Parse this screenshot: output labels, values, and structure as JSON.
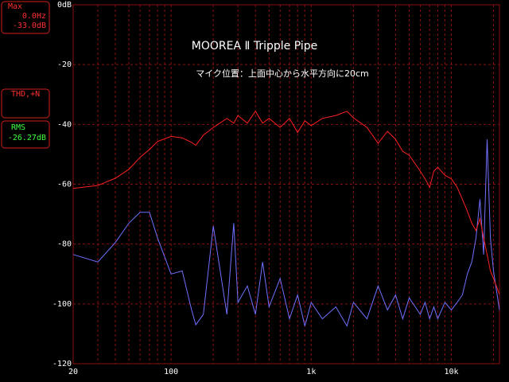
{
  "readouts": {
    "max": {
      "label": "Max",
      "freq": "0.0Hz",
      "level": "-33.0dB"
    },
    "thd": {
      "label": "THD,+N"
    },
    "rms": {
      "label": "RMS",
      "level": "-26.27dB"
    }
  },
  "chart_data": {
    "type": "line",
    "title": "MOOREA Ⅱ Tripple Pipe",
    "subtitle": "マイク位置：上面中心から水平方向に20cm",
    "log_x": true,
    "grid": true,
    "xlim": [
      20,
      22050
    ],
    "ylim": [
      -120,
      0
    ],
    "xticks": [
      20,
      100,
      {
        "value": 1000,
        "label": "1k"
      },
      {
        "value": 10000,
        "label": "10k"
      }
    ],
    "x_minor_ticks": [
      30,
      40,
      50,
      60,
      70,
      80,
      90,
      200,
      300,
      400,
      500,
      600,
      700,
      800,
      900,
      2000,
      3000,
      4000,
      5000,
      6000,
      7000,
      8000,
      9000,
      20000
    ],
    "yticks": [
      {
        "value": 0,
        "label": "0dB"
      },
      -20,
      -40,
      -60,
      -80,
      -100,
      -120
    ],
    "x": [
      20,
      30,
      40,
      50,
      60,
      70,
      80,
      100,
      120,
      140,
      150,
      170,
      200,
      250,
      280,
      300,
      350,
      400,
      450,
      500,
      600,
      700,
      800,
      900,
      1000,
      1200,
      1500,
      1800,
      2000,
      2500,
      3000,
      3500,
      4000,
      4500,
      5000,
      6000,
      6500,
      7000,
      7500,
      8000,
      9000,
      10000,
      11000,
      12000,
      13000,
      14000,
      15000,
      16000,
      17000,
      18000,
      19000,
      20000,
      22050
    ],
    "series": [
      {
        "color": "#ff2020",
        "values": [
          -61.4,
          -60.4,
          -58,
          -55,
          -51,
          -48.4,
          -45.7,
          -44,
          -44.5,
          -46,
          -47,
          -43.6,
          -41,
          -38,
          -39.6,
          -37,
          -39.6,
          -35.6,
          -39.6,
          -38,
          -41,
          -38,
          -42.7,
          -38.8,
          -40.4,
          -38,
          -37,
          -35.6,
          -37.8,
          -41,
          -46.3,
          -42.3,
          -45,
          -49,
          -50.3,
          -55.6,
          -58.2,
          -61,
          -55.6,
          -54.3,
          -57,
          -58.2,
          -61,
          -65,
          -69,
          -73,
          -75.5,
          -71.5,
          -78,
          -83.5,
          -89,
          -91.5,
          -96.8
        ]
      },
      {
        "color": "#7070ff",
        "values": [
          -83.5,
          -86,
          -79.5,
          -73,
          -69.4,
          -69.4,
          -78,
          -90,
          -89,
          -102,
          -107,
          -103.5,
          -74,
          -103.5,
          -73,
          -99.5,
          -94,
          -103.5,
          -86,
          -101,
          -91.5,
          -105,
          -97,
          -107.4,
          -99.5,
          -105,
          -101,
          -107.4,
          -99.5,
          -105,
          -94,
          -102,
          -97,
          -105,
          -98,
          -103.5,
          -99.5,
          -105,
          -101,
          -105,
          -99.5,
          -102,
          -99.5,
          -97,
          -90,
          -86,
          -78,
          -65,
          -83.5,
          -45,
          -78,
          -89,
          -102
        ]
      }
    ]
  }
}
